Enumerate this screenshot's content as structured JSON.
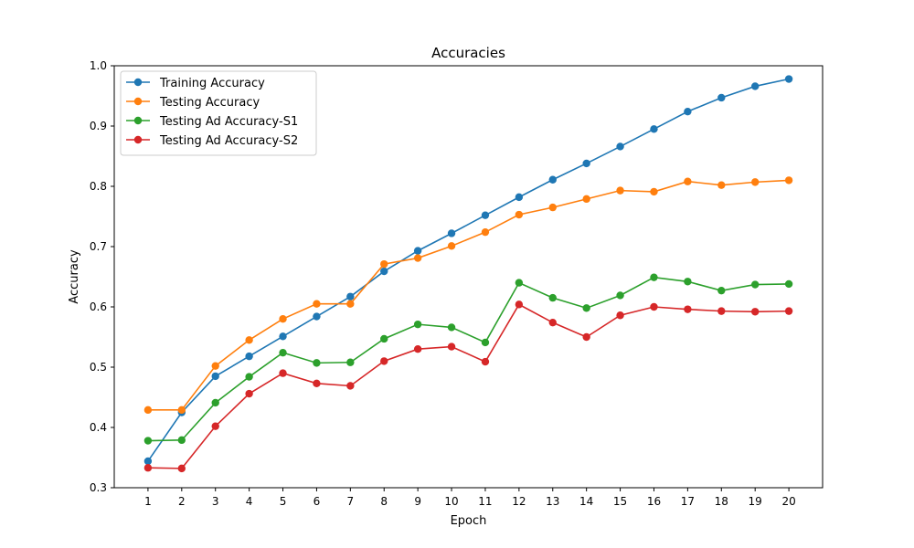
{
  "chart_data": {
    "type": "line",
    "title": "Accuracies",
    "xlabel": "Epoch",
    "ylabel": "Accuracy",
    "x": [
      1,
      2,
      3,
      4,
      5,
      6,
      7,
      8,
      9,
      10,
      11,
      12,
      13,
      14,
      15,
      16,
      17,
      18,
      19,
      20
    ],
    "xlim": [
      0.0,
      21.0
    ],
    "ylim": [
      0.3,
      1.0
    ],
    "yticks": [
      0.3,
      0.4,
      0.5,
      0.6,
      0.7,
      0.8,
      0.9,
      1.0
    ],
    "grid": false,
    "legend_position": "top-left",
    "series": [
      {
        "name": "Training Accuracy",
        "color": "#1f77b4",
        "values": [
          0.344,
          0.425,
          0.485,
          0.518,
          0.551,
          0.584,
          0.617,
          0.659,
          0.693,
          0.722,
          0.752,
          0.782,
          0.811,
          0.838,
          0.866,
          0.895,
          0.924,
          0.947,
          0.966,
          0.978
        ]
      },
      {
        "name": "Testing Accuracy",
        "color": "#ff7f0e",
        "values": [
          0.429,
          0.429,
          0.502,
          0.545,
          0.58,
          0.605,
          0.605,
          0.671,
          0.681,
          0.701,
          0.724,
          0.753,
          0.765,
          0.779,
          0.793,
          0.791,
          0.808,
          0.802,
          0.807,
          0.81
        ]
      },
      {
        "name": "Testing Ad Accuracy-S1",
        "color": "#2ca02c",
        "values": [
          0.378,
          0.379,
          0.441,
          0.484,
          0.524,
          0.507,
          0.508,
          0.547,
          0.571,
          0.566,
          0.541,
          0.64,
          0.615,
          0.598,
          0.619,
          0.649,
          0.642,
          0.627,
          0.637,
          0.638
        ]
      },
      {
        "name": "Testing Ad Accuracy-S2",
        "color": "#d62728",
        "values": [
          0.333,
          0.332,
          0.402,
          0.456,
          0.49,
          0.473,
          0.469,
          0.51,
          0.53,
          0.534,
          0.509,
          0.604,
          0.574,
          0.55,
          0.586,
          0.6,
          0.596,
          0.593,
          0.592,
          0.593
        ]
      }
    ]
  }
}
